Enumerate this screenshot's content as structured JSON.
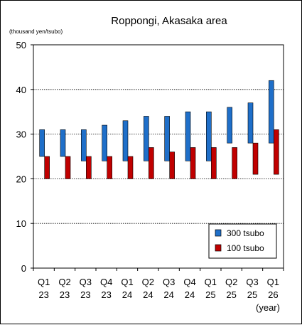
{
  "chart_data": {
    "type": "bar",
    "title": "Roppongi, Akasaka area",
    "unit_label": "(thousand yen/tsubo)",
    "x_unit_label": "(year)",
    "categories": [
      {
        "quarter": "Q1",
        "year": "23"
      },
      {
        "quarter": "Q2",
        "year": "23"
      },
      {
        "quarter": "Q3",
        "year": "23"
      },
      {
        "quarter": "Q4",
        "year": "23"
      },
      {
        "quarter": "Q1",
        "year": "24"
      },
      {
        "quarter": "Q2",
        "year": "24"
      },
      {
        "quarter": "Q3",
        "year": "24"
      },
      {
        "quarter": "Q4",
        "year": "24"
      },
      {
        "quarter": "Q1",
        "year": "25"
      },
      {
        "quarter": "Q2",
        "year": "25"
      },
      {
        "quarter": "Q3",
        "year": "25"
      },
      {
        "quarter": "Q1",
        "year": "26"
      }
    ],
    "series": [
      {
        "name": "300 tsubo",
        "color": "#1f6fc9",
        "ranges": [
          [
            25,
            31
          ],
          [
            25,
            31
          ],
          [
            24,
            31
          ],
          [
            24,
            32
          ],
          [
            24,
            33
          ],
          [
            24,
            34
          ],
          [
            24,
            34
          ],
          [
            24,
            35
          ],
          [
            24,
            35
          ],
          [
            28,
            36
          ],
          [
            28,
            37
          ],
          [
            28,
            42
          ]
        ]
      },
      {
        "name": "100 tsubo",
        "color": "#c00000",
        "ranges": [
          [
            20,
            25
          ],
          [
            20,
            25
          ],
          [
            20,
            25
          ],
          [
            20,
            25
          ],
          [
            20,
            25
          ],
          [
            20,
            27
          ],
          [
            20,
            26
          ],
          [
            20,
            27
          ],
          [
            20,
            27
          ],
          [
            20,
            27
          ],
          [
            21,
            28
          ],
          [
            21,
            31
          ]
        ]
      }
    ],
    "ylim": [
      0,
      50
    ],
    "yticks": [
      0,
      10,
      20,
      30,
      40,
      50
    ],
    "grid": true,
    "legend_position": "bottom-right"
  }
}
